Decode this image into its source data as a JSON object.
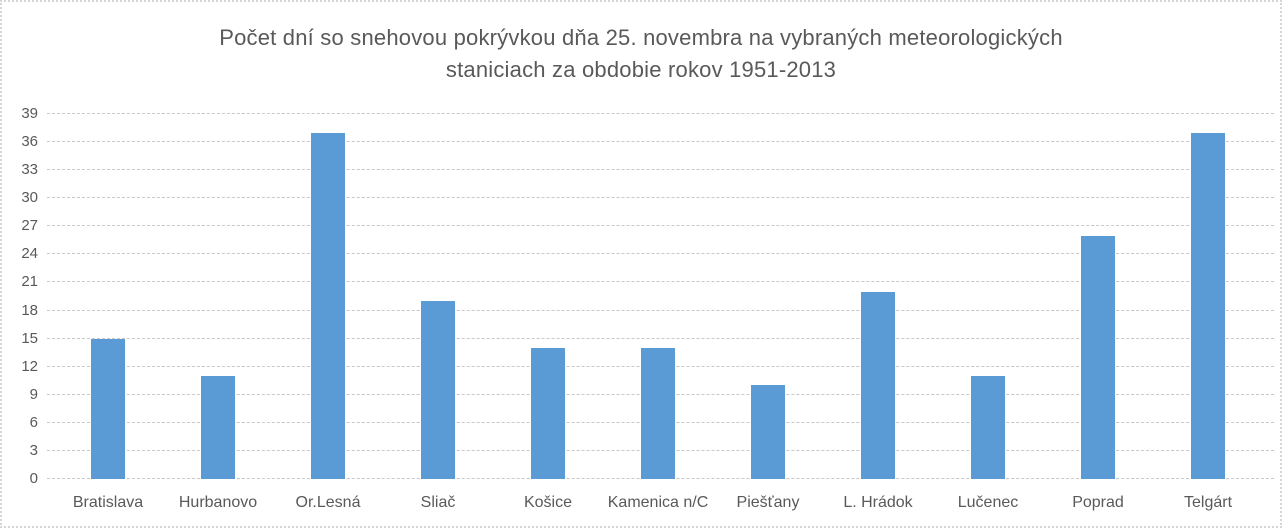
{
  "chart_data": {
    "type": "bar",
    "title": "Počet dní so snehovou pokrývkou dňa 25. novembra na vybraných meteorologických staniciach za obdobie rokov 1951-2013",
    "title_lines": [
      "Počet dní so snehovou pokrývkou dňa 25. novembra na vybraných meteorologických",
      "staniciach za obdobie rokov 1951-2013"
    ],
    "categories": [
      "Bratislava",
      "Hurbanovo",
      "Or.Lesná",
      "Sliač",
      "Košice",
      "Kamenica n/C",
      "Piešťany",
      "L. Hrádok",
      "Lučenec",
      "Poprad",
      "Telgárt"
    ],
    "values": [
      15,
      11,
      37,
      19,
      14,
      14,
      10,
      20,
      11,
      26,
      37
    ],
    "xlabel": "",
    "ylabel": "",
    "ylim": [
      0,
      39
    ],
    "yticks": [
      0,
      3,
      6,
      9,
      12,
      15,
      18,
      21,
      24,
      27,
      30,
      33,
      36,
      39
    ],
    "grid": true,
    "legend": false,
    "colors": {
      "bar": "#5b9bd5",
      "text": "#595959",
      "gridline": "#c8c8c8",
      "frame_border": "#d5d5d5"
    }
  }
}
